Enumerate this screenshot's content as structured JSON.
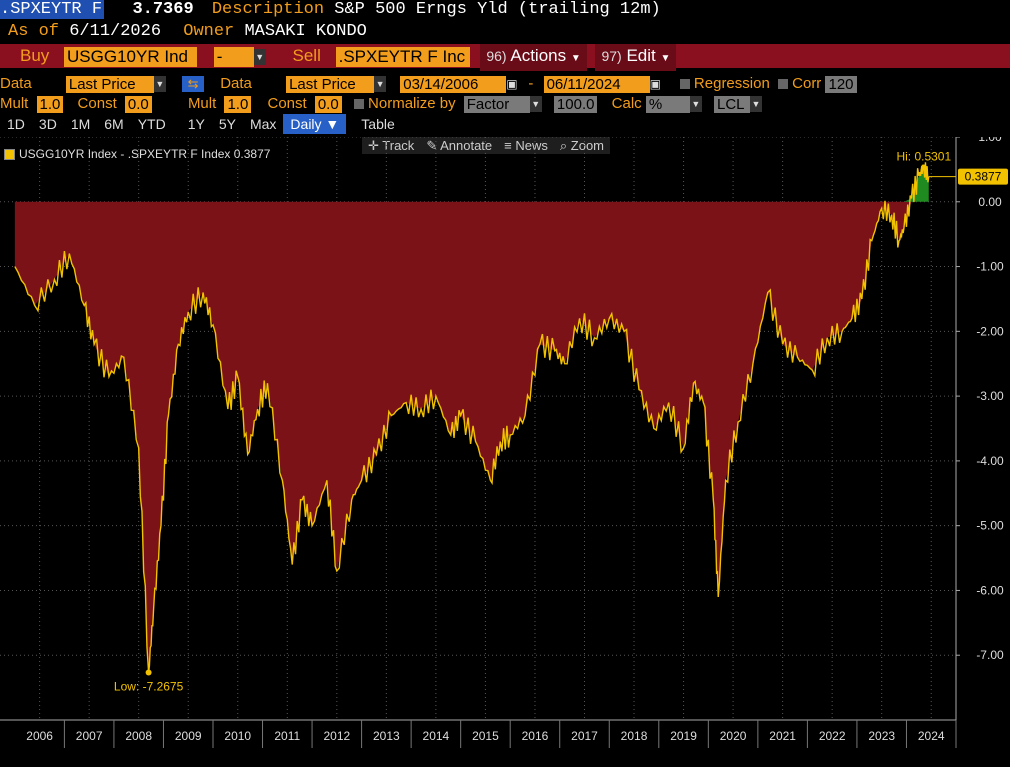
{
  "header": {
    "ticker": ".SPXEYTR F",
    "price": "3.7369",
    "description_label": "Description",
    "description": "S&P 500 Erngs Yld (trailing 12m)",
    "asof_label": "As of",
    "asof_date": "6/11/2026",
    "owner_label": "Owner",
    "owner": "MASAKI KONDO"
  },
  "tradebar": {
    "buy_label": "Buy",
    "buy_value": "USGG10YR Ind",
    "op_value": "-",
    "sell_label": "Sell",
    "sell_value": ".SPXEYTR F Inc",
    "actions_num": "96)",
    "actions_label": "Actions",
    "edit_num": "97)",
    "edit_label": "Edit"
  },
  "controls": {
    "data1_label": "Data",
    "data1_value": "Last Price",
    "data2_label": "Data",
    "data2_value": "Last Price",
    "start_date": "03/14/2006",
    "date_sep": "-",
    "end_date": "06/11/2024",
    "regression_label": "Regression",
    "corr_label": "Corr",
    "corr_value": "120",
    "mult1_label": "Mult",
    "mult1_value": "1.0",
    "const1_label": "Const",
    "const1_value": "0.0",
    "mult2_label": "Mult",
    "mult2_value": "1.0",
    "const2_label": "Const",
    "const2_value": "0.0",
    "normalize_label": "Normalize by",
    "factor_value": "Factor",
    "factor_num": "100.0",
    "calc_label": "Calc",
    "calc_value": "%",
    "lcl_value": "LCL"
  },
  "ranges": [
    "1D",
    "3D",
    "1M",
    "6M",
    "YTD",
    "1Y",
    "5Y",
    "Max",
    "Daily ▼",
    "Table"
  ],
  "active_range": "Daily ▼",
  "chart_tools": [
    "Track",
    "Annotate",
    "News",
    "Zoom"
  ],
  "colors": {
    "accent": "#f29d1b",
    "redbar": "#8a1020",
    "area_negative": "#7a1218",
    "area_positive": "#1f8a1f",
    "line": "#f2c200"
  },
  "chart_data": {
    "type": "area",
    "legend": "USGG10YR Index - .SPXEYTR F Index 0.3877",
    "last_value_label": "0.3877",
    "hi_label": "Hi: 0.5301",
    "low_label": "Low: -7.2675",
    "ylim": [
      -8,
      1
    ],
    "y_ticks": [
      "1.00",
      "0.00",
      "-1.00",
      "-2.00",
      "-3.00",
      "-4.00",
      "-5.00",
      "-6.00",
      "-7.00"
    ],
    "x_ticks": [
      "2006",
      "2007",
      "2008",
      "2009",
      "2010",
      "2011",
      "2012",
      "2013",
      "2014",
      "2015",
      "2016",
      "2017",
      "2018",
      "2019",
      "2020",
      "2021",
      "2022",
      "2023",
      "2024"
    ],
    "series": [
      {
        "x": [
          2006.0,
          2006.4,
          2006.8,
          2007.1,
          2007.4,
          2007.6,
          2007.9,
          2008.2,
          2008.5,
          2008.7,
          2008.8,
          2008.95,
          2009.1,
          2009.3,
          2009.5,
          2009.8,
          2010.0,
          2010.3,
          2010.5,
          2010.7,
          2010.9,
          2011.1,
          2011.4,
          2011.6,
          2011.8,
          2012.0,
          2012.3,
          2012.5,
          2012.8,
          2013.0,
          2013.3,
          2013.6,
          2013.9,
          2014.2,
          2014.5,
          2014.8,
          2015.0,
          2015.3,
          2015.6,
          2015.8,
          2016.0,
          2016.3,
          2016.6,
          2016.9,
          2017.1,
          2017.4,
          2017.7,
          2018.0,
          2018.3,
          2018.6,
          2018.9,
          2019.2,
          2019.5,
          2019.7,
          2019.9,
          2020.1,
          2020.2,
          2020.35,
          2020.6,
          2020.9,
          2021.2,
          2021.5,
          2021.8,
          2022.1,
          2022.4,
          2022.7,
          2022.9,
          2023.1,
          2023.3,
          2023.5,
          2023.7,
          2023.85,
          2023.95,
          2024.1,
          2024.25,
          2024.35,
          2024.45
        ],
        "y": [
          -1.0,
          -1.6,
          -1.2,
          -0.8,
          -1.6,
          -2.2,
          -2.7,
          -2.4,
          -3.8,
          -7.2675,
          -6.3,
          -5.0,
          -3.3,
          -2.2,
          -1.7,
          -1.4,
          -1.9,
          -3.2,
          -2.7,
          -3.9,
          -3.2,
          -2.8,
          -4.3,
          -5.6,
          -4.6,
          -5.0,
          -4.3,
          -5.7,
          -4.6,
          -4.3,
          -3.9,
          -3.3,
          -3.1,
          -3.2,
          -3.0,
          -3.6,
          -3.3,
          -3.7,
          -4.3,
          -3.7,
          -3.6,
          -3.3,
          -2.2,
          -2.3,
          -2.5,
          -1.8,
          -2.1,
          -1.8,
          -2.0,
          -2.9,
          -3.5,
          -3.1,
          -3.8,
          -2.8,
          -3.1,
          -4.6,
          -6.1,
          -4.3,
          -3.4,
          -2.5,
          -1.4,
          -2.2,
          -2.4,
          -2.6,
          -2.1,
          -2.0,
          -1.8,
          -1.5,
          -0.6,
          -0.1,
          -0.2,
          -0.6,
          -0.4,
          0.05,
          0.4,
          0.5301,
          0.3877
        ]
      }
    ]
  }
}
